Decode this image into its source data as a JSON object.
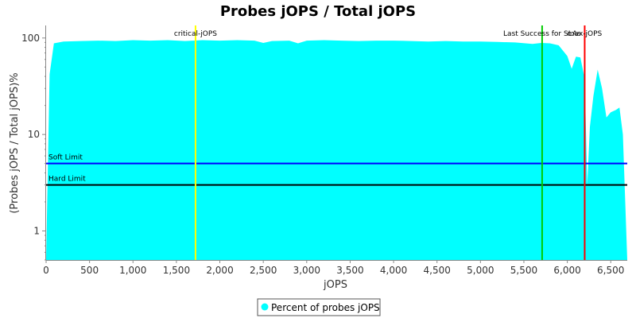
{
  "chart_data": {
    "type": "area",
    "title": "Probes jOPS / Total jOPS",
    "xlabel": "jOPS",
    "ylabel": "(Probes jOPS / Total jOPS)%",
    "xlim": [
      0,
      6690
    ],
    "ylim": [
      0.5,
      135
    ],
    "yscale": "log",
    "grid": false,
    "x_ticks": [
      0,
      500,
      1000,
      1500,
      2000,
      2500,
      3000,
      3500,
      4000,
      4500,
      5000,
      5500,
      6000,
      6500
    ],
    "x_tick_labels": [
      "0",
      "500",
      "1,000",
      "1,500",
      "2,000",
      "2,500",
      "3,000",
      "3,500",
      "4,000",
      "4,500",
      "5,000",
      "5,500",
      "6,000",
      "6,500"
    ],
    "y_ticks": [
      1,
      10,
      100
    ],
    "y_tick_labels": [
      "1",
      "10",
      "100"
    ],
    "series": [
      {
        "name": "Percent of probes jOPS",
        "color": "#00ffff",
        "x": [
          0,
          40,
          90,
          200,
          400,
          600,
          800,
          1000,
          1200,
          1400,
          1600,
          1800,
          2000,
          2200,
          2400,
          2500,
          2600,
          2800,
          2900,
          3000,
          3200,
          3400,
          3600,
          3800,
          4000,
          4200,
          4400,
          4600,
          4800,
          5000,
          5200,
          5400,
          5600,
          5700,
          5800,
          5900,
          6000,
          6050,
          6100,
          6150,
          6200,
          6230,
          6260,
          6300,
          6350,
          6400,
          6450,
          6500,
          6560,
          6600,
          6640,
          6690
        ],
        "values": [
          0.5,
          42,
          88,
          92,
          93,
          94,
          93,
          95,
          94,
          95,
          93,
          95,
          94,
          95,
          94,
          89,
          93,
          94,
          88,
          94,
          95,
          94,
          93,
          94,
          94,
          93,
          92,
          93,
          92,
          92,
          91,
          90,
          87,
          89,
          88,
          84,
          65,
          48,
          64,
          63,
          38,
          3,
          12,
          25,
          47,
          30,
          15,
          17,
          18,
          19,
          10,
          0.5
        ]
      }
    ],
    "vertical_lines": [
      {
        "label": "critical-jOPS",
        "x": 1720,
        "color": "#ffff00"
      },
      {
        "label": "Last Success for SLAs",
        "x": 5710,
        "color": "#00cc00"
      },
      {
        "label": "max-jOPS",
        "x": 6200,
        "color": "#ff0000"
      }
    ],
    "horizontal_lines": [
      {
        "label": "Soft Limit",
        "y": 5,
        "color": "#0000ff"
      },
      {
        "label": "Hard Limit",
        "y": 3,
        "color": "#000000"
      }
    ],
    "legend": {
      "position": "bottom-center"
    }
  }
}
